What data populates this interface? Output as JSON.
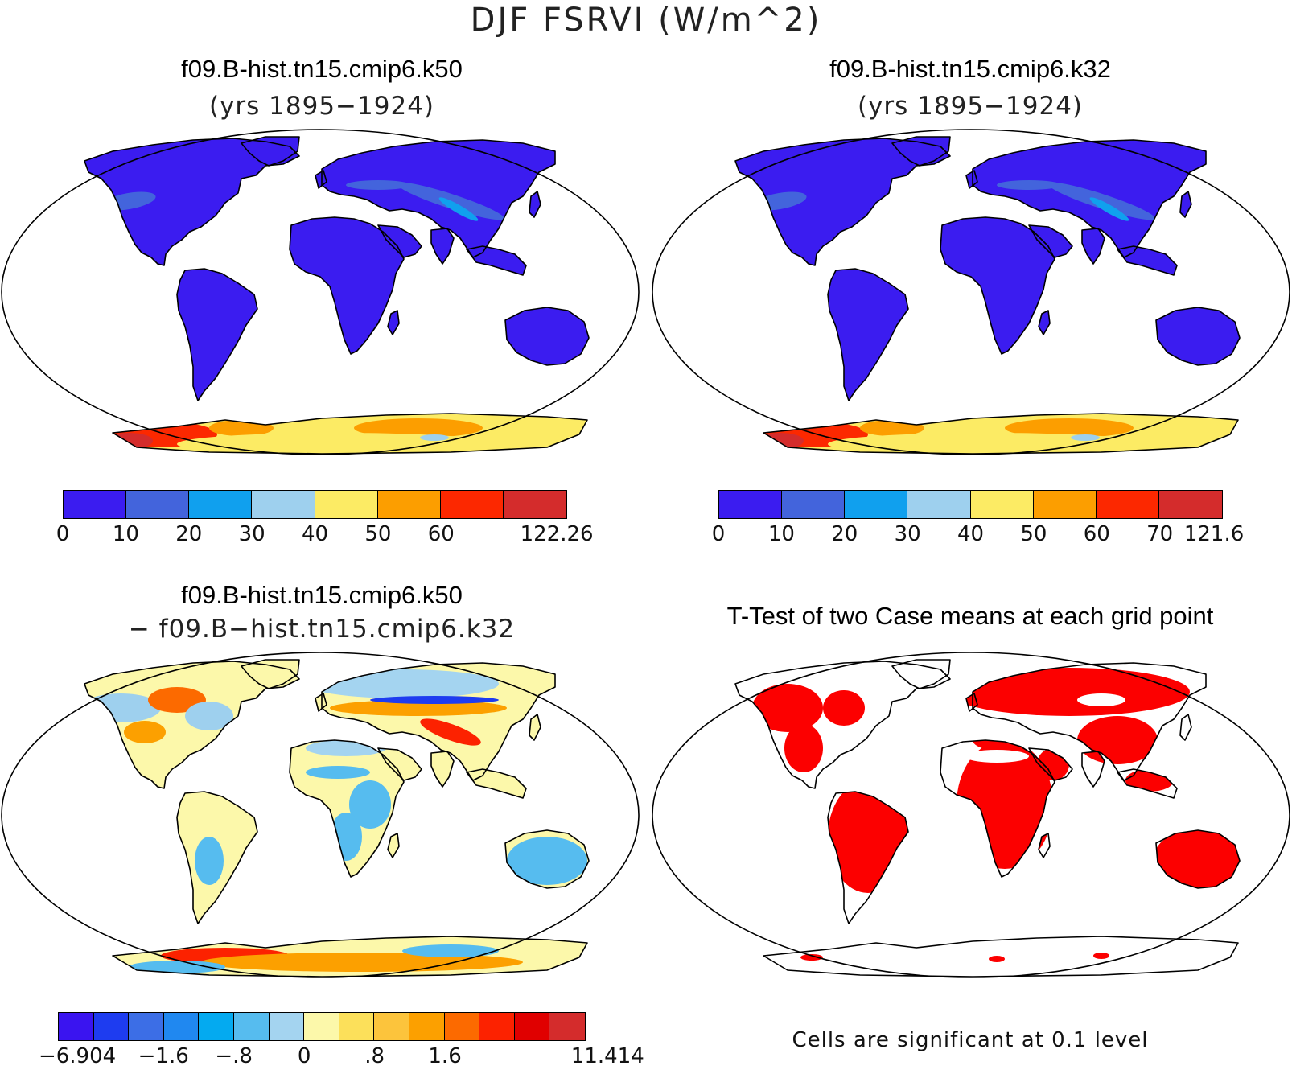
{
  "figure": {
    "title": "DJF FSRVI (W/m^2)",
    "note": "Cells are significant at 0.1 level"
  },
  "panels": [
    {
      "title": "f09.B-hist.tn15.cmip6.k50",
      "subtitle": "(yrs 1895−1924)",
      "colorbar": {
        "colors": [
          "#3b1cf0",
          "#4364dc",
          "#10a0ee",
          "#9ed0ee",
          "#fceb64",
          "#fc9e00",
          "#fc2800",
          "#d42c2c"
        ],
        "ticks": [
          "0",
          "10",
          "20",
          "30",
          "40",
          "50",
          "60",
          "122.26"
        ]
      }
    },
    {
      "title": "f09.B-hist.tn15.cmip6.k32",
      "subtitle": "(yrs 1895−1924)",
      "colorbar": {
        "colors": [
          "#3b1cf0",
          "#4364dc",
          "#10a0ee",
          "#9ed0ee",
          "#fceb64",
          "#fc9e00",
          "#fc2800",
          "#d42c2c"
        ],
        "ticks": [
          "0",
          "10",
          "20",
          "30",
          "40",
          "50",
          "60",
          "70",
          "121.6"
        ]
      }
    },
    {
      "title": "f09.B-hist.tn15.cmip6.k50",
      "subtitle": "− f09.B−hist.tn15.cmip6.k32",
      "colorbar": {
        "colors": [
          "#3a14f0",
          "#1e3cf0",
          "#3c6ee6",
          "#2088f0",
          "#04aaf0",
          "#56bcef",
          "#a4d4f0",
          "#fcf8aa",
          "#fce05a",
          "#fcc43c",
          "#fca000",
          "#fc6a00",
          "#fc2200",
          "#e00000",
          "#d42c2c"
        ],
        "ticks": [
          "−6.904",
          "−1.6",
          "−.8",
          "0",
          ".8",
          "1.6",
          "11.414"
        ]
      }
    },
    {
      "title": "T-Test of two Case means at each grid point"
    }
  ]
}
